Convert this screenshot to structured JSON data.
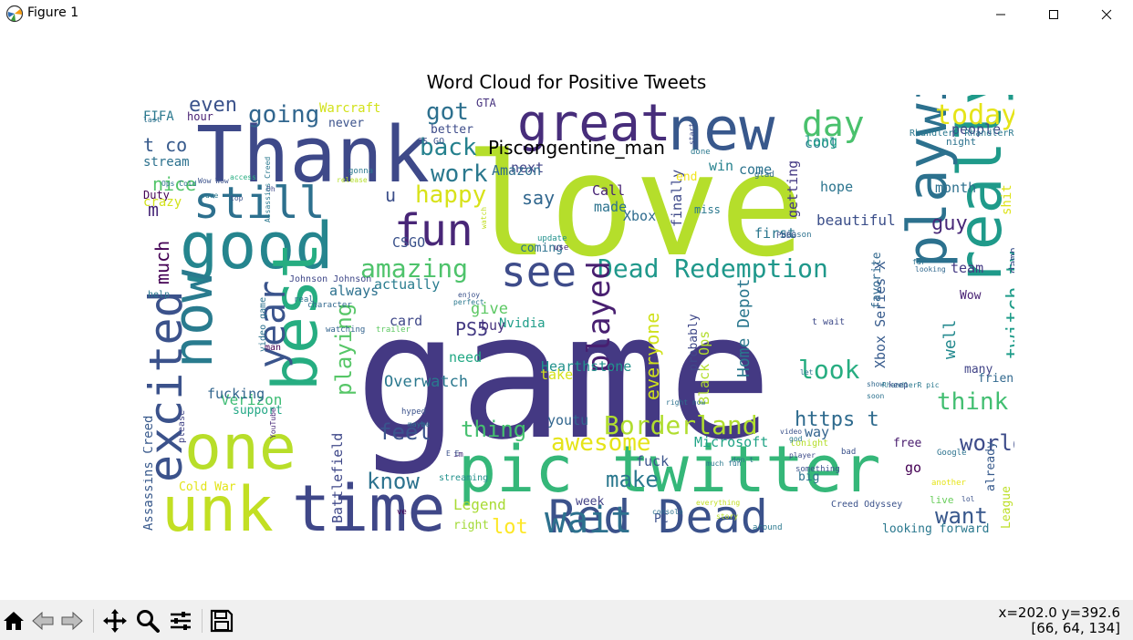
{
  "window": {
    "title": "Figure 1",
    "controls": [
      "minimize",
      "maximize",
      "close"
    ]
  },
  "figure": {
    "title": "Word Cloud for Positive Tweets",
    "overlay_label": "Piscongentine_man"
  },
  "wordcloud": {
    "words": [
      {
        "text": "game",
        "color": "#443983"
      },
      {
        "text": "love",
        "color": "#b5de2b"
      },
      {
        "text": "Thank",
        "color": "#3e4989"
      },
      {
        "text": "new",
        "color": "#38588c"
      },
      {
        "text": "great",
        "color": "#472d7b"
      },
      {
        "text": "good",
        "color": "#25858e"
      },
      {
        "text": "pic twitter",
        "color": "#35b779"
      },
      {
        "text": "unk",
        "color": "#c2df23"
      },
      {
        "text": "time",
        "color": "#3f4788"
      },
      {
        "text": "best",
        "color": "#26ad81"
      },
      {
        "text": "Red Dead",
        "color": "#3b528b"
      },
      {
        "text": "one",
        "color": "#b8de29"
      },
      {
        "text": "really",
        "color": "#1f9a8a"
      },
      {
        "text": "playwill",
        "color": "#2c718e"
      },
      {
        "text": "now",
        "color": "#297b8e"
      },
      {
        "text": "still",
        "color": "#2d708e"
      },
      {
        "text": "fun",
        "color": "#482677"
      },
      {
        "text": "year",
        "color": "#3a548c"
      },
      {
        "text": "excited",
        "color": "#3b528b"
      },
      {
        "text": "see",
        "color": "#3e4c8a"
      },
      {
        "text": "wait",
        "color": "#2d718e"
      },
      {
        "text": "day",
        "color": "#4ac16d"
      },
      {
        "text": "today",
        "color": "#e5e419"
      },
      {
        "text": "Dead Redemption",
        "color": "#1f988b"
      },
      {
        "text": "amazing",
        "color": "#4ec36b"
      },
      {
        "text": "Borderland",
        "color": "#b0dd2f"
      },
      {
        "text": "twitch tv",
        "color": "#1e9c89"
      },
      {
        "text": "played",
        "color": "#481f70"
      },
      {
        "text": "back",
        "color": "#26818e"
      },
      {
        "text": "happy",
        "color": "#d8e219"
      },
      {
        "text": "work",
        "color": "#2a788e"
      },
      {
        "text": "going",
        "color": "#31668e"
      },
      {
        "text": "got",
        "color": "#2d708e"
      },
      {
        "text": "even",
        "color": "#3b528b"
      },
      {
        "text": "t co",
        "color": "#375a8c"
      },
      {
        "text": "nice",
        "color": "#52c569"
      },
      {
        "text": "much",
        "color": "#440154"
      },
      {
        "text": "awesome",
        "color": "#e5e419"
      },
      {
        "text": "make",
        "color": "#2a788e"
      },
      {
        "text": "know",
        "color": "#2c728e"
      },
      {
        "text": "lot",
        "color": "#fde725"
      },
      {
        "text": "playing",
        "color": "#56c667"
      },
      {
        "text": "feel",
        "color": "#3a548c"
      },
      {
        "text": "thing",
        "color": "#46c06f"
      },
      {
        "text": "look",
        "color": "#27ad81"
      },
      {
        "text": "think",
        "color": "#42be71"
      },
      {
        "text": "want",
        "color": "#38588c"
      },
      {
        "text": "world",
        "color": "#3e4c8a"
      },
      {
        "text": "Legend",
        "color": "#a8db34"
      },
      {
        "text": "Battlefield",
        "color": "#3f4889"
      },
      {
        "text": "Assassins Creed",
        "color": "#38598c"
      },
      {
        "text": "Overwatch",
        "color": "#2a788e"
      },
      {
        "text": "PS5",
        "color": "#443a83"
      },
      {
        "text": "Nvidia",
        "color": "#1f9e89"
      },
      {
        "text": "Home Depot",
        "color": "#2a778e"
      },
      {
        "text": "everyone",
        "color": "#d0e11c"
      },
      {
        "text": "say",
        "color": "#31678e"
      },
      {
        "text": "Call",
        "color": "#482475"
      },
      {
        "text": "made",
        "color": "#2c738e"
      },
      {
        "text": "Xbox",
        "color": "#2f6c8e"
      },
      {
        "text": "Black Ops",
        "color": "#b2dd2d"
      },
      {
        "text": "Xbox Series X",
        "color": "#375b8d"
      },
      {
        "text": "guy",
        "color": "#482878"
      },
      {
        "text": "beautiful",
        "color": "#3c4f8a"
      },
      {
        "text": "hope",
        "color": "#2b748e"
      },
      {
        "text": "first",
        "color": "#2a768e"
      },
      {
        "text": "getting",
        "color": "#443983"
      },
      {
        "text": "finally",
        "color": "#3e4989"
      },
      {
        "text": "month",
        "color": "#2d708e"
      },
      {
        "text": "cool",
        "color": "#287d8e"
      },
      {
        "text": "people",
        "color": "#3f4788"
      },
      {
        "text": "well",
        "color": "#23898e"
      },
      {
        "text": "shit",
        "color": "#dde318"
      },
      {
        "text": "Warcraft",
        "color": "#d2e21b"
      },
      {
        "text": "FIFA",
        "color": "#2a788e"
      },
      {
        "text": "stream",
        "color": "#2c718e"
      },
      {
        "text": "m",
        "color": "#482878"
      },
      {
        "text": "u",
        "color": "#3c4f8a"
      },
      {
        "text": "Verizon",
        "color": "#3dbc74"
      },
      {
        "text": "fucking",
        "color": "#32658e"
      },
      {
        "text": "support",
        "color": "#22a785"
      },
      {
        "text": "Cold War",
        "color": "#e2e418"
      },
      {
        "text": "right",
        "color": "#a2da37"
      },
      {
        "text": "PC",
        "color": "#3c508b"
      },
      {
        "text": "week",
        "color": "#424186"
      },
      {
        "text": "Microsoft",
        "color": "#20a386"
      },
      {
        "text": "fuck",
        "color": "#3a538b"
      },
      {
        "text": "go",
        "color": "#440154"
      },
      {
        "text": "free",
        "color": "#481b6d"
      },
      {
        "text": "League",
        "color": "#bddf26"
      },
      {
        "text": "already",
        "color": "#375a8c"
      },
      {
        "text": "Creed Odyssey",
        "color": "#3b528b"
      },
      {
        "text": "looking forward",
        "color": "#2a788e"
      },
      {
        "text": "https t",
        "color": "#2f6b8e"
      },
      {
        "text": "youtu",
        "color": "#31668e"
      },
      {
        "text": "need",
        "color": "#22a884"
      },
      {
        "text": "give",
        "color": "#5cc863"
      },
      {
        "text": "buy",
        "color": "#46327e"
      },
      {
        "text": "card",
        "color": "#3f4889"
      },
      {
        "text": "CSGO",
        "color": "#3b528b"
      },
      {
        "text": "actually",
        "color": "#287c8e"
      },
      {
        "text": "always",
        "color": "#2c718e"
      },
      {
        "text": "Hearthstone",
        "color": "#21918c"
      },
      {
        "text": "take",
        "color": "#d5e21a"
      },
      {
        "text": "way",
        "color": "#33638d"
      },
      {
        "text": "big",
        "color": "#2c718e"
      },
      {
        "text": "live",
        "color": "#69cd5b"
      },
      {
        "text": "friend",
        "color": "#31688e"
      },
      {
        "text": "many",
        "color": "#414487"
      },
      {
        "text": "team",
        "color": "#443983"
      },
      {
        "text": "Wow",
        "color": "#482173"
      },
      {
        "text": "damn",
        "color": "#3b528b"
      },
      {
        "text": "long",
        "color": "#1fa088"
      },
      {
        "text": "come",
        "color": "#2c738e"
      },
      {
        "text": "win",
        "color": "#26828e"
      },
      {
        "text": "next",
        "color": "#414487"
      },
      {
        "text": "coming",
        "color": "#2c718e"
      },
      {
        "text": "Amazon",
        "color": "#2f6c8e"
      },
      {
        "text": "end",
        "color": "#f1e51d"
      },
      {
        "text": "miss",
        "color": "#2a788e"
      },
      {
        "text": "never",
        "color": "#3b528b"
      },
      {
        "text": "hour",
        "color": "#482173"
      },
      {
        "text": "Duty",
        "color": "#440154"
      },
      {
        "text": "GTA",
        "color": "#46327e"
      },
      {
        "text": "better",
        "color": "#3e4c8a"
      },
      {
        "text": "CS GO",
        "color": "#3b528b"
      },
      {
        "text": "RhandlerR RhandlerR",
        "color": "#2a788e"
      },
      {
        "text": "night",
        "color": "#2c728e"
      },
      {
        "text": "favorite",
        "color": "#31688e"
      },
      {
        "text": "probably",
        "color": "#3f4889"
      },
      {
        "text": "t wait",
        "color": "#3e4a89"
      },
      {
        "text": "tonight",
        "color": "#b5de2b"
      },
      {
        "text": "Johnson Johnson",
        "color": "#3f4788"
      },
      {
        "text": "help",
        "color": "#2a788e"
      },
      {
        "text": "man",
        "color": "#440154"
      },
      {
        "text": "video game",
        "color": "#2c718e"
      },
      {
        "text": "show",
        "color": "#31688e"
      },
      {
        "text": "YouTube",
        "color": "#482878"
      },
      {
        "text": "Google",
        "color": "#2c728e"
      },
      {
        "text": "something",
        "color": "#3b528b"
      },
      {
        "text": "RhandlerR pic",
        "color": "#2a788e"
      },
      {
        "text": "ve",
        "color": "#440154"
      },
      {
        "text": "im",
        "color": "#472d7b"
      },
      {
        "text": "maybe",
        "color": "#2c718e"
      },
      {
        "text": "hyped",
        "color": "#3b528b"
      },
      {
        "text": "streaming",
        "color": "#21918c"
      },
      {
        "text": "trailer",
        "color": "#5ec962"
      },
      {
        "text": "character",
        "color": "#31688e"
      },
      {
        "text": "watching",
        "color": "#33638d"
      },
      {
        "text": "real",
        "color": "#2c718e"
      },
      {
        "text": "enjoy",
        "color": "#3b528b"
      },
      {
        "text": "perfect",
        "color": "#2a788e"
      },
      {
        "text": "please",
        "color": "#414487"
      },
      {
        "text": "crazy",
        "color": "#d2e21b"
      },
      {
        "text": "Ops Cold",
        "color": "#2c718e"
      },
      {
        "text": "access",
        "color": "#27ad81"
      },
      {
        "text": "top",
        "color": "#3b528b"
      },
      {
        "text": "last",
        "color": "#2c718e"
      },
      {
        "text": "sure",
        "color": "#2a788e"
      },
      {
        "text": "Oh",
        "color": "#3f4889"
      },
      {
        "text": "Wow Wow",
        "color": "#3b528b"
      },
      {
        "text": "release",
        "color": "#b5de2b"
      },
      {
        "text": "gonna",
        "color": "#2a788e"
      },
      {
        "text": "watch",
        "color": "#c2df23"
      },
      {
        "text": "use",
        "color": "#482878"
      },
      {
        "text": "update",
        "color": "#21918c"
      },
      {
        "text": "season",
        "color": "#2c718e"
      },
      {
        "text": "PUBG",
        "color": "#3b528b"
      },
      {
        "text": "glad",
        "color": "#31688e"
      },
      {
        "text": "done",
        "color": "#2a788e"
      },
      {
        "text": "start",
        "color": "#3e4c8a"
      },
      {
        "text": "soon",
        "color": "#2c718e"
      },
      {
        "text": "keep",
        "color": "#3b528b"
      },
      {
        "text": "around",
        "color": "#2a788e"
      },
      {
        "text": "everything",
        "color": "#c2df23"
      },
      {
        "text": "console",
        "color": "#2c718e"
      },
      {
        "text": "story",
        "color": "#b5de2b"
      },
      {
        "text": "lol",
        "color": "#3b528b"
      },
      {
        "text": "far",
        "color": "#2c718e"
      },
      {
        "text": "looking",
        "color": "#31688e"
      },
      {
        "text": "another",
        "color": "#e5e419"
      },
      {
        "text": "god",
        "color": "#2a788e"
      },
      {
        "text": "video",
        "color": "#3b528b"
      },
      {
        "text": "don t",
        "color": "#2c718e"
      },
      {
        "text": "player",
        "color": "#3e4c8a"
      },
      {
        "text": "much fun",
        "color": "#2a788e"
      },
      {
        "text": "E E",
        "color": "#3b528b"
      },
      {
        "text": "let",
        "color": "#2c718e"
      },
      {
        "text": "bad",
        "color": "#3b528b"
      },
      {
        "text": "right now",
        "color": "#2c718e"
      },
      {
        "text": "Assassins Creed",
        "color": "#2a788e"
      }
    ]
  },
  "toolbar": {
    "tools": [
      "home-icon",
      "back-icon",
      "forward-icon",
      "pan-icon",
      "zoom-icon",
      "configure-icon",
      "save-icon"
    ]
  },
  "status": {
    "coords": "x=202.0 y=392.6",
    "pixel_value": "[66, 64, 134]"
  }
}
